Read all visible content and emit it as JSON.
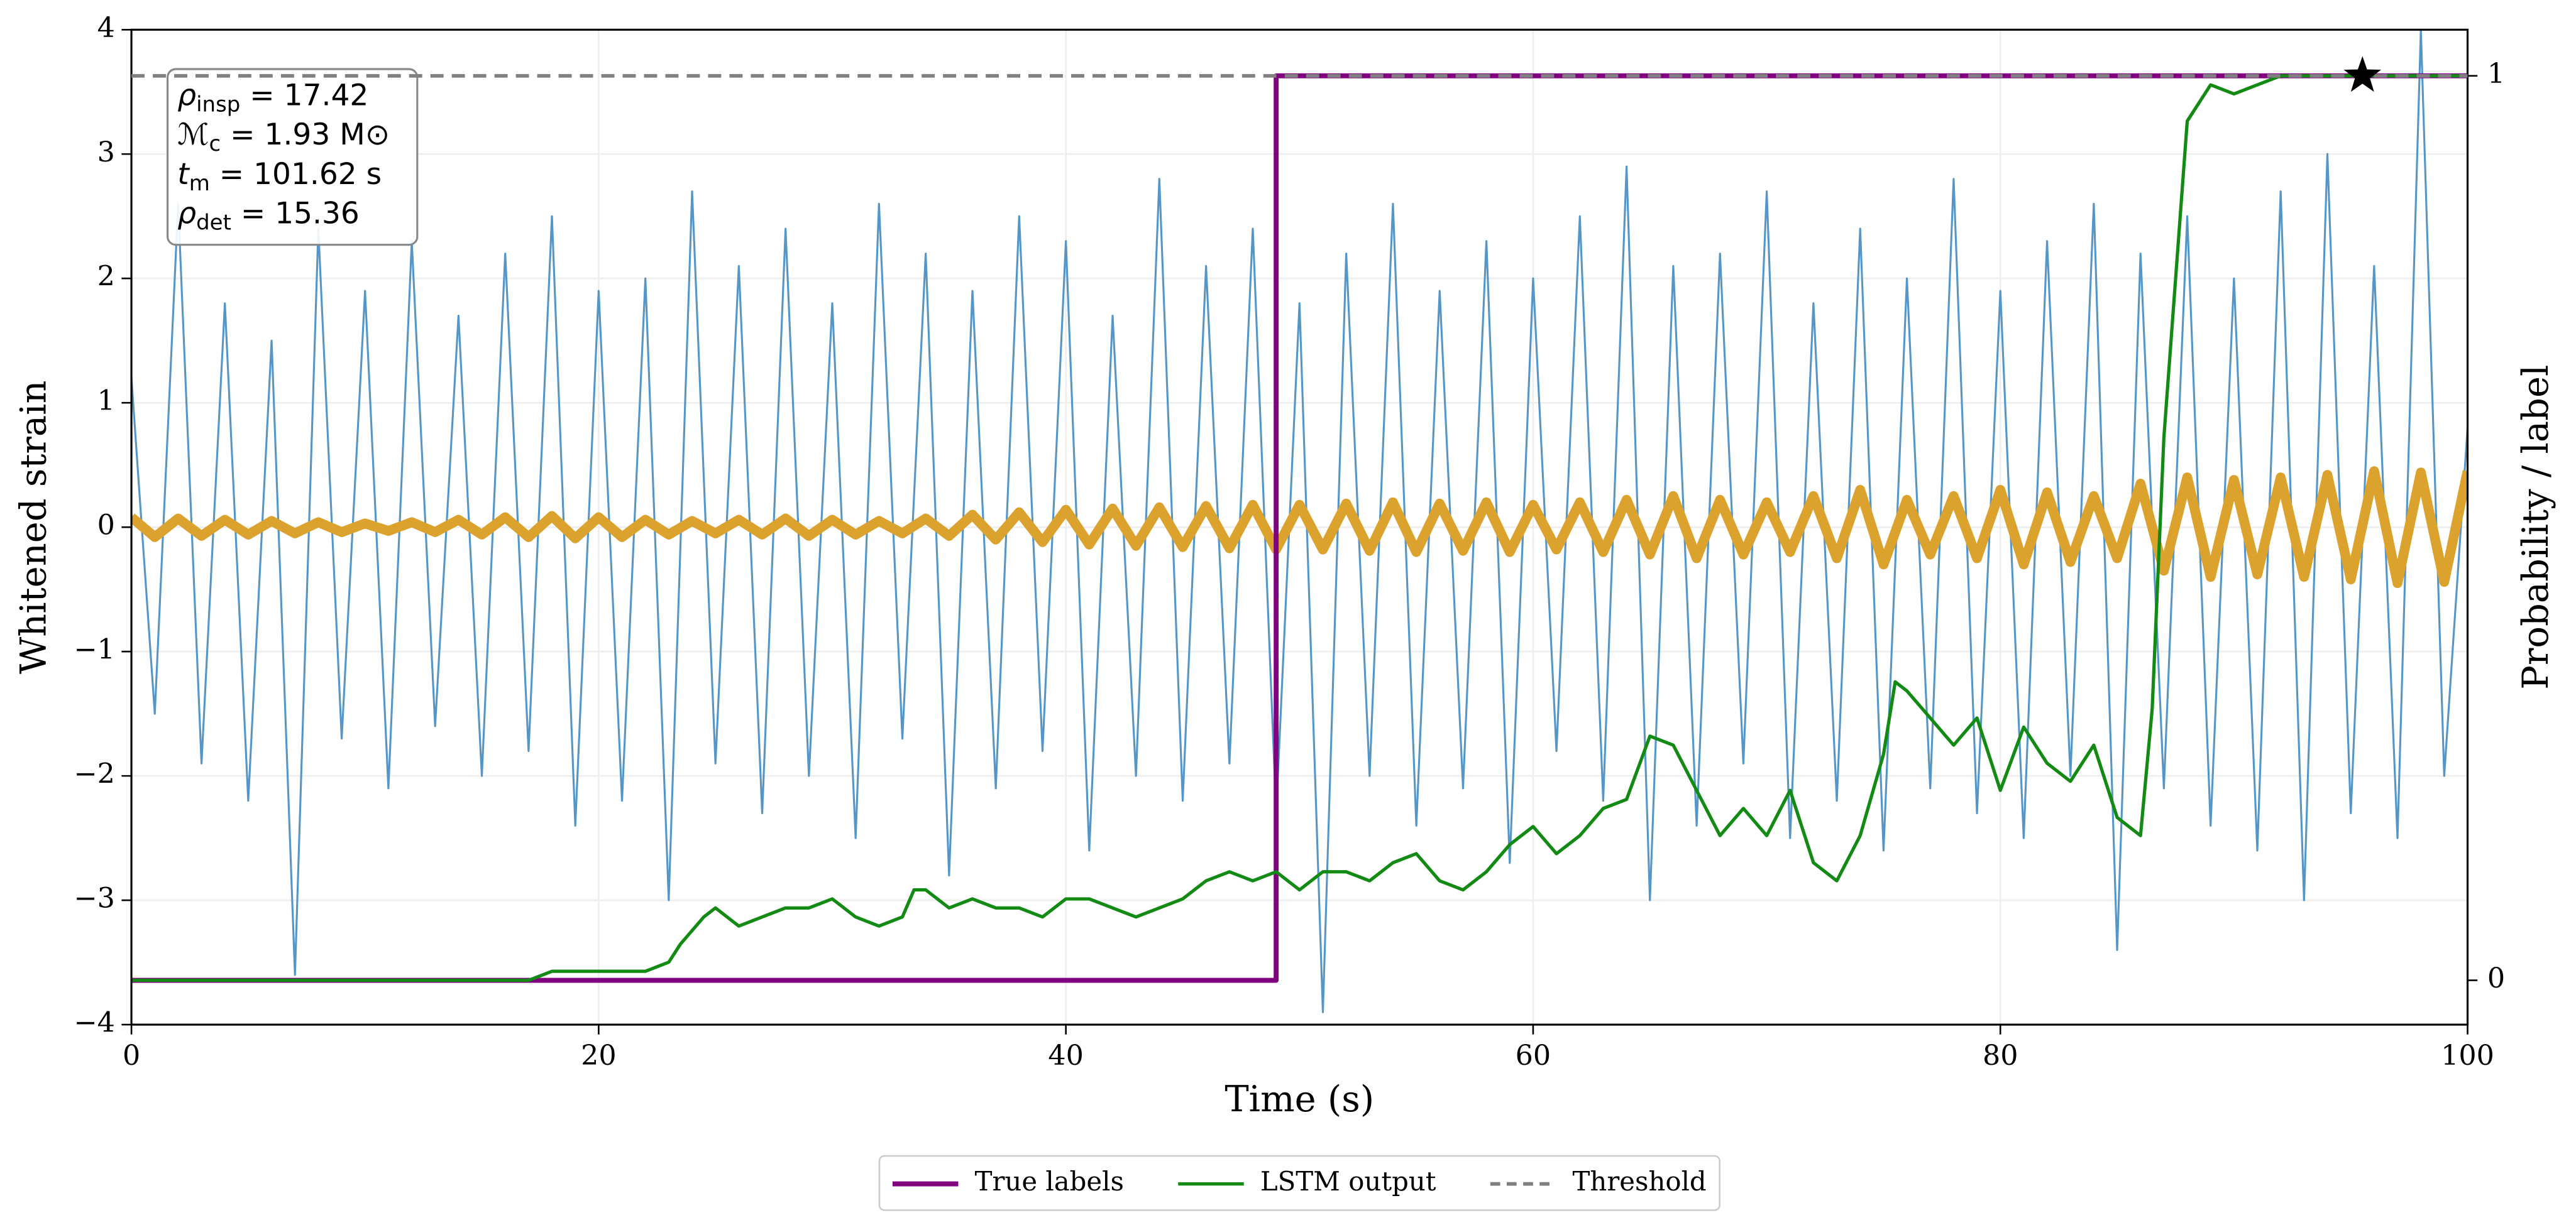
{
  "chart_data": {
    "type": "line",
    "xlabel": "Time (s)",
    "ylabel": "Whitened strain",
    "y2label": "Probability / label",
    "xlim": [
      0,
      100
    ],
    "xticks": [
      0,
      20,
      40,
      60,
      80,
      100
    ],
    "ylim": [
      -4,
      4
    ],
    "yticks": [
      {
        "value": -4,
        "label": "−4"
      },
      {
        "value": -3,
        "label": "−3"
      },
      {
        "value": -2,
        "label": "−2"
      },
      {
        "value": -1,
        "label": "−1"
      },
      0,
      1,
      2,
      3,
      4
    ],
    "y2lim": [
      -0.049,
      1.051
    ],
    "y2ticks": [
      0,
      1
    ],
    "grid": true,
    "legend": "bottom",
    "annotation": [
      {
        "main": "ρ",
        "sub": "insp",
        "rest": " = 17.42"
      },
      {
        "main": "ℳ",
        "sub": "c",
        "rest": " = 1.93 M⊙"
      },
      {
        "main": "t",
        "sub": "m",
        "rest": " = 101.62 s"
      },
      {
        "main": "ρ",
        "sub": "det",
        "rest": " = 15.36"
      }
    ],
    "x": [
      0,
      1,
      2,
      3,
      4,
      5,
      6,
      7,
      8,
      9,
      10,
      11,
      12,
      13,
      14,
      15,
      16,
      17,
      18,
      19,
      20,
      21,
      22,
      23,
      24,
      25,
      26,
      27,
      28,
      29,
      30,
      31,
      32,
      33,
      34,
      35,
      36,
      37,
      38,
      39,
      40,
      41,
      42,
      43,
      44,
      45,
      46,
      47,
      48,
      49,
      50,
      51,
      52,
      53,
      54,
      55,
      56,
      57,
      58,
      59,
      60,
      61,
      62,
      63,
      64,
      65,
      66,
      67,
      68,
      69,
      70,
      71,
      72,
      73,
      74,
      75,
      76,
      77,
      78,
      79,
      80,
      81,
      82,
      83,
      84,
      85,
      86,
      87,
      88,
      89,
      90,
      91,
      92,
      93,
      94,
      95,
      96,
      97,
      98,
      99,
      100
    ],
    "series": [
      {
        "color": "#5596c8",
        "width": 1.2,
        "values": [
          1.2,
          -1.5,
          2.6,
          -1.9,
          1.8,
          -2.2,
          1.5,
          -3.6,
          2.4,
          -1.7,
          1.9,
          -2.1,
          2.3,
          -1.6,
          1.7,
          -2.0,
          2.2,
          -1.8,
          2.5,
          -2.4,
          1.9,
          -2.2,
          2.0,
          -3.0,
          2.7,
          -1.9,
          2.1,
          -2.3,
          2.4,
          -2.0,
          1.8,
          -2.5,
          2.6,
          -1.7,
          2.2,
          -2.8,
          1.9,
          -2.1,
          2.5,
          -1.8,
          2.3,
          -2.6,
          1.7,
          -2.0,
          2.8,
          -2.2,
          2.1,
          -1.9,
          2.4,
          -2.3,
          1.8,
          -3.9,
          2.2,
          -2.0,
          2.6,
          -2.4,
          1.9,
          -2.1,
          2.3,
          -2.7,
          2.0,
          -1.8,
          2.5,
          -2.2,
          2.9,
          -3.0,
          2.1,
          -2.4,
          2.2,
          -1.9,
          2.7,
          -2.5,
          1.8,
          -2.2,
          2.4,
          -2.6,
          2.0,
          -2.1,
          2.8,
          -2.3,
          1.9,
          -2.5,
          2.3,
          -2.0,
          2.6,
          -3.4,
          2.2,
          -2.1,
          2.5,
          -2.4,
          2.0,
          -2.6,
          2.7,
          -3.0,
          3.0,
          -2.3,
          2.1,
          -2.5,
          4.0,
          -2.0,
          0.8
        ]
      },
      {
        "color": "#dba22e",
        "width": 6,
        "values": [
          0.08,
          -0.08,
          0.07,
          -0.07,
          0.06,
          -0.06,
          0.05,
          -0.05,
          0.04,
          -0.04,
          0.03,
          -0.03,
          0.04,
          -0.04,
          0.06,
          -0.06,
          0.08,
          -0.08,
          0.09,
          -0.09,
          0.08,
          -0.08,
          0.06,
          -0.06,
          0.05,
          -0.05,
          0.06,
          -0.06,
          0.07,
          -0.07,
          0.06,
          -0.06,
          0.05,
          -0.05,
          0.07,
          -0.07,
          0.1,
          -0.1,
          0.12,
          -0.12,
          0.14,
          -0.14,
          0.15,
          -0.15,
          0.16,
          -0.16,
          0.17,
          -0.17,
          0.18,
          -0.18,
          0.18,
          -0.18,
          0.19,
          -0.19,
          0.2,
          -0.2,
          0.19,
          -0.19,
          0.2,
          -0.2,
          0.18,
          -0.18,
          0.2,
          -0.2,
          0.22,
          -0.22,
          0.25,
          -0.25,
          0.22,
          -0.22,
          0.2,
          -0.2,
          0.25,
          -0.25,
          0.3,
          -0.3,
          0.22,
          -0.22,
          0.25,
          -0.25,
          0.3,
          -0.3,
          0.28,
          -0.28,
          0.25,
          -0.25,
          0.35,
          -0.35,
          0.4,
          -0.4,
          0.38,
          -0.38,
          0.4,
          -0.4,
          0.42,
          -0.42,
          0.45,
          -0.45,
          0.44,
          -0.44,
          0.45
        ]
      },
      {
        "name": "True labels",
        "color": "#800080",
        "width": 3,
        "axis": "y2",
        "x": [
          0,
          49,
          49,
          100
        ],
        "values": [
          0,
          0,
          1,
          1
        ]
      },
      {
        "name": "LSTM output",
        "color": "#138a13",
        "width": 2,
        "axis": "y2",
        "x": [
          0,
          17,
          18,
          20,
          22,
          23,
          23.5,
          24.5,
          25,
          26,
          27,
          28,
          29,
          30,
          31,
          32,
          33,
          33.5,
          34,
          35,
          36,
          37,
          38,
          39,
          40,
          41,
          42,
          43,
          44,
          45,
          46,
          47,
          48,
          49,
          50,
          51,
          52,
          53,
          54,
          55,
          56,
          57,
          58,
          59,
          60,
          61,
          62,
          63,
          64,
          65,
          66,
          67,
          68,
          69,
          70,
          71,
          72,
          73,
          74,
          75,
          75.5,
          76,
          77,
          78,
          79,
          80,
          81,
          82,
          83,
          84,
          85,
          86,
          86.5,
          87,
          88,
          89,
          90,
          91,
          92,
          95,
          100
        ],
        "values": [
          0,
          0,
          0.01,
          0.01,
          0.01,
          0.02,
          0.04,
          0.07,
          0.08,
          0.06,
          0.07,
          0.08,
          0.08,
          0.09,
          0.07,
          0.06,
          0.07,
          0.1,
          0.1,
          0.08,
          0.09,
          0.08,
          0.08,
          0.07,
          0.09,
          0.09,
          0.08,
          0.07,
          0.08,
          0.09,
          0.11,
          0.12,
          0.11,
          0.12,
          0.1,
          0.12,
          0.12,
          0.11,
          0.13,
          0.14,
          0.11,
          0.1,
          0.12,
          0.15,
          0.17,
          0.14,
          0.16,
          0.19,
          0.2,
          0.27,
          0.26,
          0.21,
          0.16,
          0.19,
          0.16,
          0.21,
          0.13,
          0.11,
          0.16,
          0.25,
          0.33,
          0.32,
          0.29,
          0.26,
          0.29,
          0.21,
          0.28,
          0.24,
          0.22,
          0.26,
          0.18,
          0.16,
          0.3,
          0.6,
          0.95,
          0.99,
          0.98,
          0.99,
          1.0,
          1.0,
          1.0
        ]
      },
      {
        "name": "Threshold",
        "color": "#808080",
        "width": 2.2,
        "dash": true,
        "axis": "y2",
        "x": [
          0,
          100
        ],
        "values": [
          1,
          1
        ]
      },
      {
        "color": "#000000",
        "marker": "star",
        "axis": "y2",
        "x": [
          95.5
        ],
        "values": [
          1
        ]
      }
    ]
  }
}
